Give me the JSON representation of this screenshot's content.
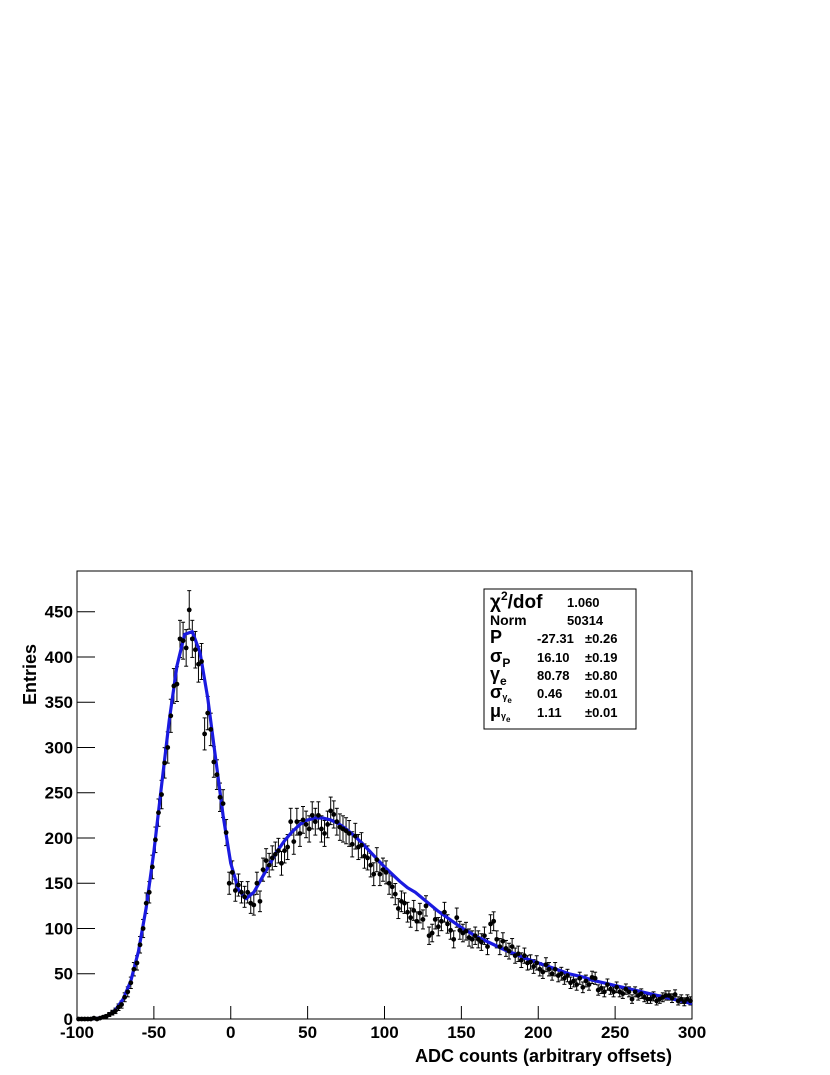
{
  "chart_data": {
    "type": "histogram-fit",
    "x_label": "ADC counts (arbitrary offsets)",
    "y_label": "Entries",
    "xlim": [
      -100,
      300
    ],
    "ylim": [
      0,
      495
    ],
    "xticks": [
      -100,
      -50,
      0,
      50,
      100,
      150,
      200,
      250,
      300
    ],
    "yticks": [
      0,
      50,
      100,
      150,
      200,
      250,
      300,
      350,
      400,
      450
    ],
    "points": {
      "color": "#000000",
      "x": [
        -99,
        -97,
        -95,
        -93,
        -91,
        -89,
        -87,
        -85,
        -83,
        -81,
        -79,
        -77,
        -75,
        -73,
        -71,
        -69,
        -67,
        -65,
        -63,
        -61,
        -59,
        -57,
        -55,
        -53,
        -51,
        -49,
        -47,
        -45,
        -43,
        -41,
        -39,
        -37,
        -35,
        -33,
        -31,
        -29,
        -27,
        -25,
        -23,
        -21,
        -19,
        -17,
        -15,
        -13,
        -11,
        -9,
        -7,
        -5,
        -3,
        -1,
        1,
        3,
        5,
        7,
        9,
        11,
        13,
        15,
        17,
        19,
        21,
        23,
        25,
        27,
        29,
        31,
        33,
        35,
        37,
        39,
        41,
        43,
        45,
        47,
        49,
        51,
        53,
        55,
        57,
        59,
        61,
        63,
        65,
        67,
        69,
        71,
        73,
        75,
        77,
        79,
        81,
        83,
        85,
        87,
        89,
        91,
        93,
        95,
        97,
        99,
        101,
        103,
        105,
        107,
        109,
        111,
        113,
        115,
        117,
        119,
        121,
        123,
        125,
        127,
        129,
        131,
        133,
        135,
        137,
        139,
        141,
        143,
        145,
        147,
        149,
        151,
        153,
        155,
        157,
        159,
        161,
        163,
        165,
        167,
        169,
        171,
        173,
        175,
        177,
        179,
        181,
        183,
        185,
        187,
        189,
        191,
        193,
        195,
        197,
        199,
        201,
        203,
        205,
        207,
        209,
        211,
        213,
        215,
        217,
        219,
        221,
        223,
        225,
        227,
        229,
        231,
        233,
        235,
        237,
        239,
        241,
        243,
        245,
        247,
        249,
        251,
        253,
        255,
        257,
        259,
        261,
        263,
        265,
        267,
        269,
        271,
        273,
        275,
        277,
        279,
        281,
        283,
        285,
        287,
        289,
        291,
        293,
        295,
        297,
        299
      ],
      "values": [
        0,
        0,
        0,
        0,
        0,
        1,
        0,
        1,
        2,
        3,
        5,
        7,
        9,
        13,
        16,
        24,
        30,
        40,
        55,
        62,
        82,
        100,
        128,
        140,
        168,
        198,
        228,
        248,
        283,
        300,
        335,
        368,
        370,
        420,
        418,
        410,
        452,
        420,
        408,
        392,
        395,
        315,
        338,
        320,
        284,
        270,
        245,
        238,
        206,
        150,
        162,
        142,
        148,
        140,
        135,
        140,
        128,
        126,
        150,
        130,
        165,
        175,
        170,
        178,
        182,
        186,
        172,
        186,
        190,
        218,
        196,
        218,
        205,
        220,
        215,
        210,
        225,
        218,
        225,
        210,
        205,
        215,
        230,
        226,
        218,
        212,
        210,
        208,
        205,
        193,
        202,
        190,
        192,
        180,
        178,
        170,
        160,
        176,
        160,
        165,
        162,
        150,
        146,
        138,
        122,
        130,
        128,
        118,
        112,
        120,
        108,
        117,
        110,
        125,
        92,
        95,
        110,
        102,
        108,
        118,
        105,
        98,
        88,
        112,
        98,
        95,
        97,
        90,
        88,
        92,
        88,
        85,
        92,
        80,
        105,
        108,
        88,
        80,
        86,
        78,
        75,
        80,
        70,
        72,
        65,
        70,
        62,
        63,
        58,
        62,
        55,
        52,
        60,
        55,
        50,
        55,
        48,
        50,
        45,
        48,
        40,
        42,
        38,
        45,
        35,
        42,
        38,
        46,
        45,
        32,
        34,
        30,
        38,
        33,
        30,
        35,
        30,
        28,
        33,
        30,
        22,
        30,
        26,
        28,
        24,
        22,
        22,
        25,
        20,
        22,
        24,
        26,
        26,
        23,
        27,
        20,
        22,
        19,
        22,
        20
      ],
      "errors": [
        0,
        0,
        0,
        0,
        0,
        1,
        0,
        1,
        1.4,
        1.7,
        2.2,
        2.6,
        3,
        3.6,
        4,
        4.9,
        5.5,
        6.3,
        7.4,
        7.9,
        9.1,
        10,
        11.3,
        11.8,
        13,
        14.1,
        15.1,
        15.7,
        16.8,
        17.3,
        18.3,
        19.2,
        19.2,
        20.5,
        20.4,
        20.2,
        21.3,
        20.5,
        20.2,
        19.8,
        19.9,
        17.7,
        18.4,
        17.9,
        16.9,
        16.4,
        15.7,
        15.4,
        14.4,
        12.2,
        12.7,
        11.9,
        12.2,
        11.8,
        11.6,
        11.8,
        11.3,
        11.2,
        12.2,
        11.4,
        12.8,
        13.2,
        13,
        13.3,
        13.5,
        13.6,
        13.1,
        13.6,
        13.8,
        14.8,
        14,
        14.8,
        14.3,
        14.8,
        14.7,
        14.5,
        15,
        14.8,
        15,
        14.5,
        14.3,
        14.7,
        15.2,
        15,
        14.8,
        14.6,
        14.5,
        14.4,
        14.3,
        13.9,
        14.2,
        13.8,
        13.9,
        13.4,
        13.3,
        13,
        12.6,
        13.3,
        12.6,
        12.8,
        12.7,
        12.2,
        12.1,
        11.7,
        11,
        11.4,
        11.3,
        10.9,
        10.6,
        11,
        10.4,
        10.8,
        10.5,
        11.2,
        9.6,
        9.7,
        10.5,
        10.1,
        10.4,
        10.9,
        10.2,
        9.9,
        9.4,
        10.6,
        9.9,
        9.7,
        9.8,
        9.5,
        9.4,
        9.6,
        9.4,
        9.2,
        9.6,
        8.9,
        10.2,
        10.4,
        9.4,
        8.9,
        9.3,
        8.8,
        8.7,
        8.9,
        8.4,
        8.5,
        8.1,
        8.4,
        7.9,
        7.9,
        7.6,
        7.9,
        7.4,
        7.2,
        7.7,
        7.4,
        7.1,
        7.4,
        6.9,
        7.1,
        6.7,
        6.9,
        6.3,
        6.5,
        6.2,
        6.7,
        5.9,
        6.5,
        6.2,
        6.8,
        6.7,
        5.7,
        5.8,
        5.5,
        6.2,
        5.7,
        5.5,
        5.9,
        5.5,
        5.3,
        5.7,
        5.5,
        4.7,
        5.5,
        5.1,
        5.3,
        4.9,
        4.7,
        4.7,
        5,
        4.5,
        4.7,
        4.9,
        5.1,
        5.1,
        4.8,
        5.2,
        4.5,
        4.7,
        4.4,
        4.7,
        4.5
      ]
    },
    "fit": {
      "color": "#1a1ae0",
      "x": [
        -100,
        -95,
        -90,
        -85,
        -80,
        -75,
        -70,
        -65,
        -60,
        -55,
        -50,
        -45,
        -40,
        -35,
        -30,
        -25,
        -20,
        -15,
        -10,
        -5,
        0,
        5,
        10,
        15,
        20,
        25,
        30,
        35,
        40,
        45,
        50,
        55,
        60,
        65,
        70,
        75,
        80,
        85,
        90,
        95,
        100,
        105,
        110,
        115,
        120,
        125,
        130,
        135,
        140,
        145,
        150,
        155,
        160,
        165,
        170,
        175,
        180,
        185,
        190,
        195,
        200,
        205,
        210,
        215,
        220,
        225,
        230,
        235,
        240,
        245,
        250,
        255,
        260,
        265,
        270,
        275,
        280,
        285,
        290,
        295,
        300
      ],
      "values": [
        0,
        0,
        0.3,
        1,
        4,
        10,
        22,
        42,
        75,
        123,
        185,
        258,
        330,
        390,
        425,
        428,
        405,
        355,
        290,
        225,
        172,
        143,
        133,
        140,
        155,
        170,
        185,
        197,
        207,
        215,
        220,
        222,
        222,
        220,
        216,
        210,
        203,
        195,
        186,
        177,
        168,
        160,
        152,
        145,
        140,
        133,
        126,
        119,
        113,
        107,
        101,
        96,
        91,
        87,
        83,
        79,
        75,
        72,
        68,
        65,
        62,
        59,
        56,
        53,
        50,
        48,
        46,
        43,
        41,
        39,
        37,
        35,
        33,
        31,
        29,
        27,
        25,
        23,
        21,
        19,
        17
      ]
    },
    "stats": [
      {
        "label": "χ",
        "sup": "2",
        "suffix": "/dof",
        "value": "1.060"
      },
      {
        "label": "Norm",
        "value": "50314"
      },
      {
        "label": "P",
        "value": "-27.31",
        "error": "±0.26"
      },
      {
        "label": "σ",
        "sub": "P",
        "value": "16.10",
        "error": "±0.19"
      },
      {
        "label": "γ",
        "sub": "e",
        "value": "80.78",
        "error": "±0.80"
      },
      {
        "label": "σ",
        "sub": "γ",
        "sub2": "e",
        "value": "0.46",
        "error": "±0.01"
      },
      {
        "label": "μ",
        "sub": "γ",
        "sub2": "e",
        "value": "1.11",
        "error": "±0.01"
      }
    ]
  }
}
